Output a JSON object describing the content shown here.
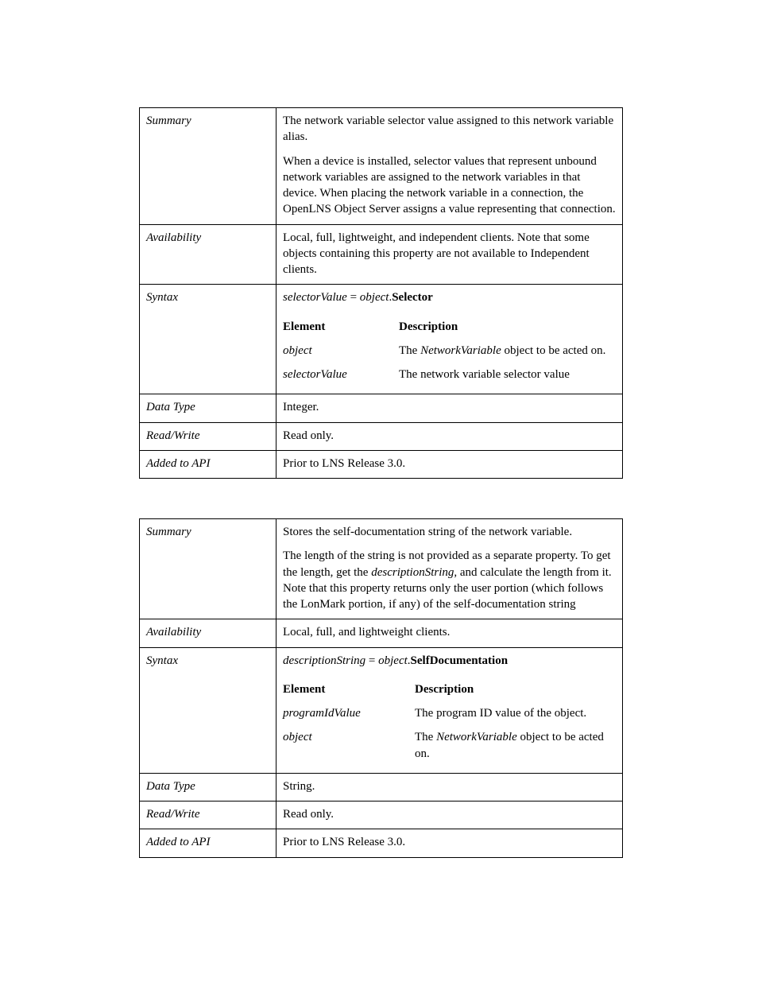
{
  "table1": {
    "rows": {
      "summary": {
        "label": "Summary",
        "p1": "The network variable selector value assigned to this network variable alias.",
        "p2": "When a device is installed, selector values that represent unbound network variables are assigned to the network variables in that device.  When placing the network variable in a connection, the OpenLNS Object Server assigns a value representing that connection."
      },
      "availability": {
        "label": "Availability",
        "text": "Local, full, lightweight, and independent clients. Note that some objects containing this property are not available to Independent clients."
      },
      "syntax": {
        "label": "Syntax",
        "lhs": "selectorValue",
        "eq": " = ",
        "obj": "object",
        "dot": ".",
        "prop": "Selector",
        "header_elem": "Element",
        "header_desc": "Description",
        "r1_elem": "object",
        "r1_desc_pre": "The ",
        "r1_desc_em": "NetworkVariable",
        "r1_desc_post": " object to be acted on.",
        "r2_elem": "selectorValue",
        "r2_desc": "The network variable selector value"
      },
      "datatype": {
        "label": "Data Type",
        "text": "Integer."
      },
      "readwrite": {
        "label": "Read/Write",
        "text": "Read only."
      },
      "added": {
        "label": "Added to API",
        "text": "Prior to LNS Release 3.0."
      }
    }
  },
  "table2": {
    "rows": {
      "summary": {
        "label": "Summary",
        "p1": "Stores the self-documentation string of the network variable.",
        "p2a": "The length of the string is not provided as a separate property.  To get the length, get the ",
        "p2em": "descriptionString",
        "p2b": ", and calculate the length from it. Note that this property returns only the user portion (which follows the LonMark portion, if any) of the self-documentation string"
      },
      "availability": {
        "label": "Availability",
        "text": "Local, full, and lightweight clients."
      },
      "syntax": {
        "label": "Syntax",
        "lhs": "descriptionString",
        "eq": " = ",
        "obj": "object",
        "dot": ".",
        "prop": "SelfDocumentation",
        "header_elem": "Element",
        "header_desc": "Description",
        "r1_elem": "programIdValue",
        "r1_desc": "The program ID value of the object.",
        "r2_elem": "object",
        "r2_desc_pre": "The ",
        "r2_desc_em": "NetworkVariable",
        "r2_desc_post": " object to be acted on."
      },
      "datatype": {
        "label": "Data Type",
        "text": "String."
      },
      "readwrite": {
        "label": "Read/Write",
        "text": "Read only."
      },
      "added": {
        "label": "Added to API",
        "text": "Prior to LNS Release 3.0."
      }
    }
  }
}
